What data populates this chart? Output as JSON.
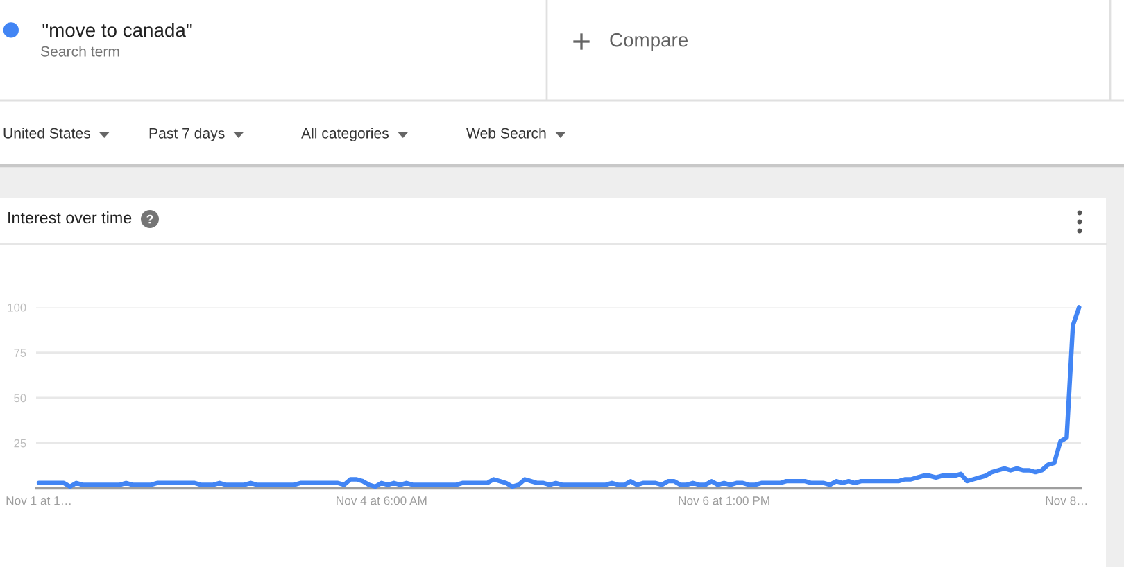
{
  "chart_data": {
    "type": "line",
    "title": "Interest over time",
    "categories": [
      "Nov 1 at 1…",
      null,
      null,
      null,
      null,
      null,
      null,
      null,
      null,
      null,
      null,
      null,
      null,
      null,
      null,
      null,
      null,
      null,
      null,
      null,
      null,
      null,
      null,
      null,
      null,
      null,
      null,
      null,
      null,
      null,
      null,
      null,
      null,
      null,
      null,
      null,
      null,
      null,
      null,
      null,
      null,
      null,
      null,
      null,
      null,
      null,
      null,
      null,
      null,
      null,
      null,
      null,
      null,
      null,
      null,
      "Nov 4 at 6:00 AM",
      null,
      null,
      null,
      null,
      null,
      null,
      null,
      null,
      null,
      null,
      null,
      null,
      null,
      null,
      null,
      null,
      null,
      null,
      null,
      null,
      null,
      null,
      null,
      null,
      null,
      null,
      null,
      null,
      null,
      null,
      null,
      null,
      null,
      null,
      null,
      null,
      null,
      null,
      null,
      null,
      null,
      null,
      null,
      null,
      null,
      null,
      null,
      null,
      null,
      null,
      null,
      null,
      null,
      null,
      "Nov 6 at 1:00 PM",
      null,
      null,
      null,
      null,
      null,
      null,
      null,
      null,
      null,
      null,
      null,
      null,
      null,
      null,
      null,
      null,
      null,
      null,
      null,
      null,
      null,
      null,
      null,
      null,
      null,
      null,
      null,
      null,
      null,
      null,
      null,
      null,
      null,
      null,
      null,
      null,
      null,
      null,
      null,
      null,
      null,
      null,
      null,
      null,
      null,
      null,
      null,
      null,
      null,
      null,
      null,
      null,
      null,
      null,
      "Nov 8…",
      null,
      null
    ],
    "series": [
      {
        "name": "\"move to canada\"",
        "color": "#4285f4",
        "values": [
          3,
          3,
          3,
          3,
          3,
          1,
          3,
          2,
          2,
          2,
          2,
          2,
          2,
          2,
          3,
          2,
          2,
          2,
          2,
          3,
          3,
          3,
          3,
          3,
          3,
          3,
          2,
          2,
          2,
          3,
          2,
          2,
          2,
          2,
          3,
          2,
          2,
          2,
          2,
          2,
          2,
          2,
          3,
          3,
          3,
          3,
          3,
          3,
          3,
          2,
          5,
          5,
          4,
          2,
          1,
          3,
          2,
          3,
          2,
          3,
          2,
          2,
          2,
          2,
          2,
          2,
          2,
          2,
          3,
          3,
          3,
          3,
          3,
          5,
          4,
          3,
          1,
          2,
          5,
          4,
          3,
          3,
          2,
          3,
          2,
          2,
          2,
          2,
          2,
          2,
          2,
          2,
          3,
          2,
          2,
          4,
          2,
          3,
          3,
          3,
          2,
          4,
          4,
          2,
          2,
          3,
          2,
          2,
          4,
          2,
          3,
          2,
          3,
          3,
          2,
          2,
          3,
          3,
          3,
          3,
          4,
          4,
          4,
          4,
          3,
          3,
          3,
          2,
          4,
          3,
          4,
          3,
          4,
          4,
          4,
          4,
          4,
          4,
          4,
          5,
          5,
          6,
          7,
          7,
          6,
          7,
          7,
          7,
          8,
          4,
          5,
          6,
          7,
          9,
          10,
          11,
          10,
          11,
          10,
          10,
          9,
          10,
          13,
          14,
          26,
          28,
          90,
          100
        ]
      }
    ],
    "ylim": [
      0,
      100
    ],
    "yticks": [
      25,
      50,
      75,
      100
    ],
    "grid": "y",
    "legend": "top left",
    "annotations": [
      "Search term",
      "Compare",
      "United States",
      "Past 7 days",
      "All categories",
      "Web Search"
    ]
  }
}
